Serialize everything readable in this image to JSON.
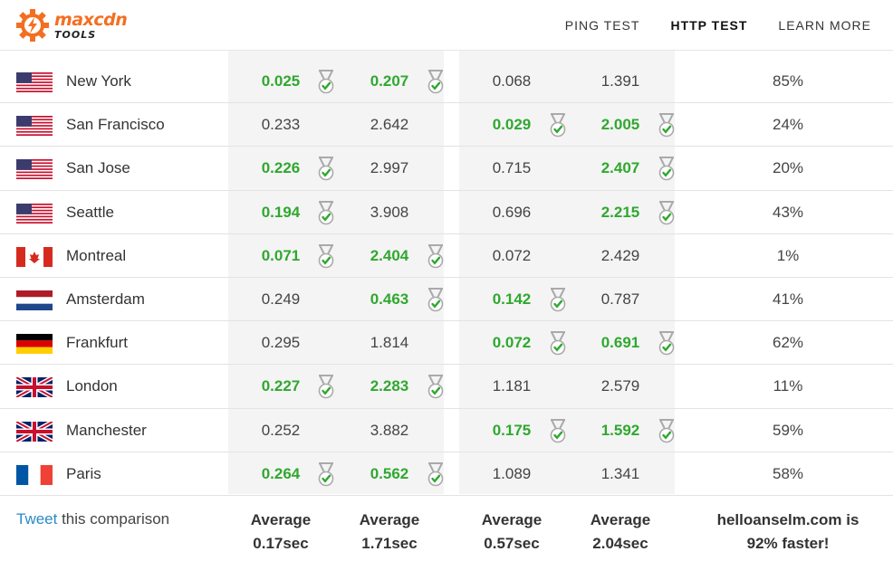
{
  "header": {
    "brand": "maxcdn",
    "sub": "TOOLS",
    "nav": [
      {
        "label": "PING TEST",
        "active": false
      },
      {
        "label": "HTTP TEST",
        "active": true
      },
      {
        "label": "LEARN MORE",
        "active": false
      }
    ]
  },
  "colors": {
    "accent": "#f36f21",
    "win": "#2fa82f",
    "link": "#2a8ac6"
  },
  "rows": [
    {
      "city": "New York",
      "flag": "us",
      "v": [
        "0.025",
        "0.207",
        "0.068",
        "1.391"
      ],
      "win": [
        true,
        true,
        false,
        false
      ],
      "pct": "85%"
    },
    {
      "city": "San Francisco",
      "flag": "us",
      "v": [
        "0.233",
        "2.642",
        "0.029",
        "2.005"
      ],
      "win": [
        false,
        false,
        true,
        true
      ],
      "pct": "24%"
    },
    {
      "city": "San Jose",
      "flag": "us",
      "v": [
        "0.226",
        "2.997",
        "0.715",
        "2.407"
      ],
      "win": [
        true,
        false,
        false,
        true
      ],
      "pct": "20%"
    },
    {
      "city": "Seattle",
      "flag": "us",
      "v": [
        "0.194",
        "3.908",
        "0.696",
        "2.215"
      ],
      "win": [
        true,
        false,
        false,
        true
      ],
      "pct": "43%"
    },
    {
      "city": "Montreal",
      "flag": "ca",
      "v": [
        "0.071",
        "2.404",
        "0.072",
        "2.429"
      ],
      "win": [
        true,
        true,
        false,
        false
      ],
      "pct": "1%"
    },
    {
      "city": "Amsterdam",
      "flag": "nl",
      "v": [
        "0.249",
        "0.463",
        "0.142",
        "0.787"
      ],
      "win": [
        false,
        true,
        true,
        false
      ],
      "pct": "41%"
    },
    {
      "city": "Frankfurt",
      "flag": "de",
      "v": [
        "0.295",
        "1.814",
        "0.072",
        "0.691"
      ],
      "win": [
        false,
        false,
        true,
        true
      ],
      "pct": "62%"
    },
    {
      "city": "London",
      "flag": "gb",
      "v": [
        "0.227",
        "2.283",
        "1.181",
        "2.579"
      ],
      "win": [
        true,
        true,
        false,
        false
      ],
      "pct": "11%"
    },
    {
      "city": "Manchester",
      "flag": "gb",
      "v": [
        "0.252",
        "3.882",
        "0.175",
        "1.592"
      ],
      "win": [
        false,
        false,
        true,
        true
      ],
      "pct": "59%"
    },
    {
      "city": "Paris",
      "flag": "fr",
      "v": [
        "0.264",
        "0.562",
        "1.089",
        "1.341"
      ],
      "win": [
        true,
        true,
        false,
        false
      ],
      "pct": "58%"
    }
  ],
  "footer": {
    "tweet_link": "Tweet",
    "tweet_text": " this comparison",
    "averages": [
      {
        "label": "Average",
        "value": "0.17sec"
      },
      {
        "label": "Average",
        "value": "1.71sec"
      },
      {
        "label": "Average",
        "value": "0.57sec"
      },
      {
        "label": "Average",
        "value": "2.04sec"
      }
    ],
    "summary_line1": "helloanselm.com is",
    "summary_line2": "92% faster!"
  }
}
